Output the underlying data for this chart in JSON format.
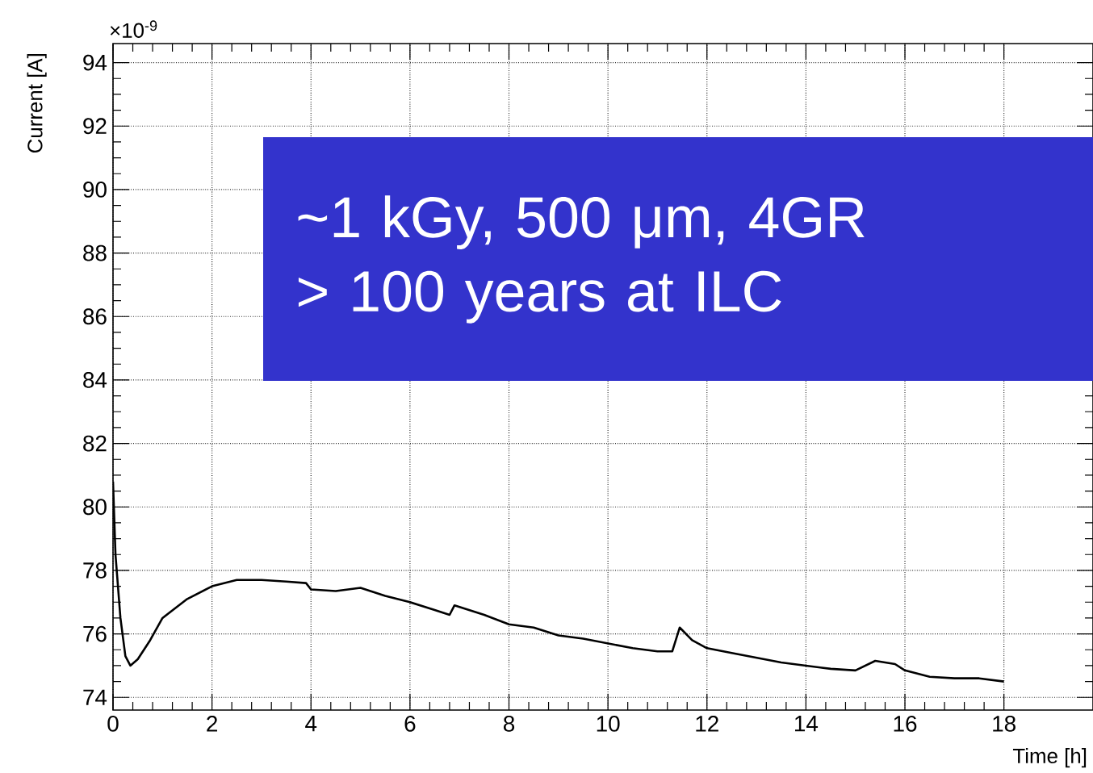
{
  "chart_data": {
    "type": "line",
    "xlabel": "Time [h]",
    "ylabel": "Current [A]",
    "annotations": [
      "×10$^{-9}$",
      "~1 kGy, 500 μm, 4GR",
      "> 100 years at ILC"
    ],
    "x": [
      0,
      0.05,
      0.15,
      0.25,
      0.35,
      0.5,
      0.75,
      1,
      1.5,
      2,
      2.5,
      3,
      3.5,
      3.9,
      4,
      4.5,
      5,
      5.5,
      6,
      6.5,
      6.8,
      6.9,
      7.5,
      8,
      8.5,
      9,
      9.5,
      10,
      10.5,
      11,
      11.3,
      11.45,
      11.7,
      12,
      12.5,
      13,
      13.5,
      14,
      14.5,
      15,
      15.4,
      15.8,
      16,
      16.5,
      17,
      17.5,
      18
    ],
    "series": [
      {
        "color": "#000000",
        "values": [
          80.8,
          78.5,
          76.5,
          75.3,
          75.0,
          75.2,
          75.8,
          76.5,
          77.1,
          77.5,
          77.7,
          77.7,
          77.65,
          77.6,
          77.4,
          77.35,
          77.45,
          77.2,
          77.0,
          76.75,
          76.6,
          76.9,
          76.6,
          76.3,
          76.2,
          75.95,
          75.85,
          75.7,
          75.55,
          75.45,
          75.45,
          76.2,
          75.8,
          75.55,
          75.4,
          75.25,
          75.1,
          75.0,
          74.9,
          74.85,
          75.15,
          75.05,
          74.85,
          74.65,
          74.6,
          74.6,
          74.5
        ]
      }
    ],
    "xlim": [
      0,
      19.8
    ],
    "ylim": [
      73.6,
      94.6
    ],
    "xticks": [
      0,
      2,
      4,
      6,
      8,
      10,
      12,
      14,
      16,
      18
    ],
    "yticks": [
      74,
      76,
      78,
      80,
      82,
      84,
      86,
      88,
      90,
      92,
      94
    ],
    "grid": true,
    "marker": "none",
    "line_style": "solid"
  }
}
